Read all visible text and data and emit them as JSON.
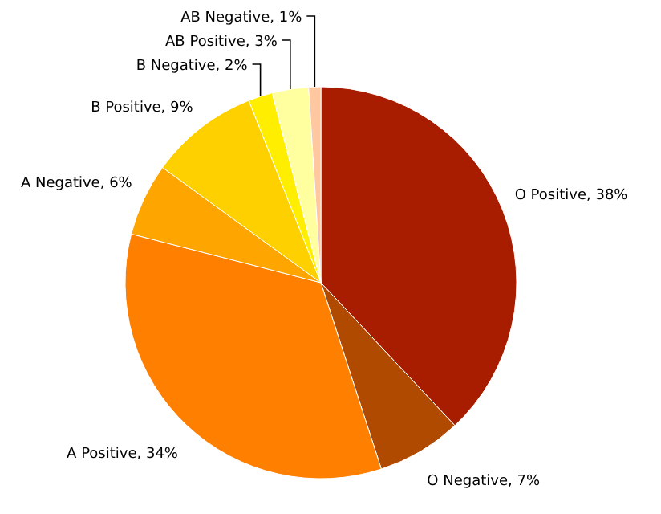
{
  "chart_data": {
    "type": "pie",
    "categories": [
      "O Positive",
      "O Negative",
      "A Positive",
      "A Negative",
      "B Positive",
      "B Negative",
      "AB Positive",
      "AB Negative"
    ],
    "values": [
      38,
      7,
      34,
      6,
      9,
      2,
      3,
      1
    ],
    "colors": [
      "#a81c00",
      "#b04a00",
      "#ff8000",
      "#ffa500",
      "#ffd000",
      "#ffee00",
      "#ffffa0",
      "#ffc8a0"
    ],
    "value_labels": [
      "38%",
      "7%",
      "34%",
      "6%",
      "9%",
      "2%",
      "3%",
      "1%"
    ],
    "legend": false
  }
}
